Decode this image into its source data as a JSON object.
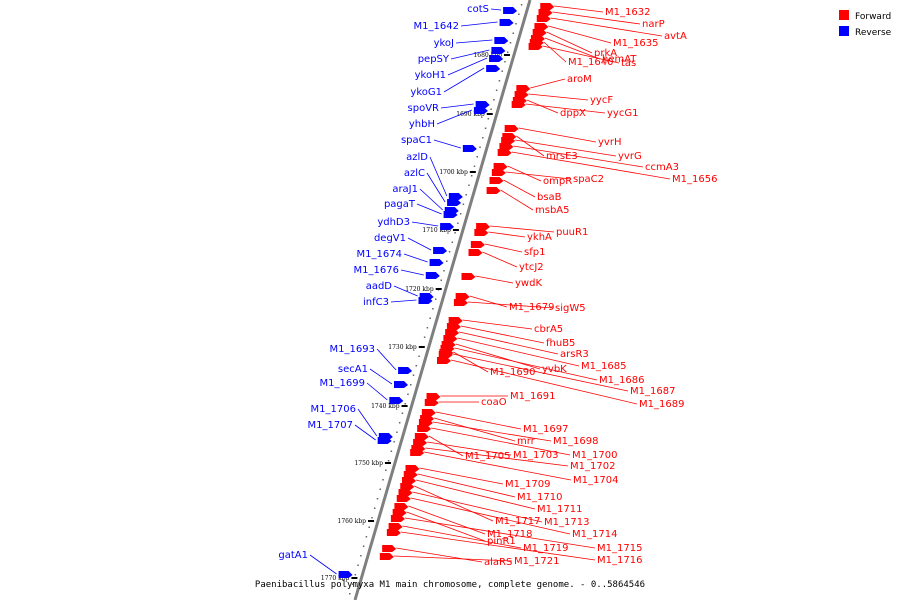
{
  "caption": "Paenibacillus polymyxa M1 main chromosome, complete genome. - 0..5864546",
  "legend": [
    {
      "label": "Forward",
      "color": "#ff0000"
    },
    {
      "label": "Reverse",
      "color": "#0000ff"
    }
  ],
  "colors": {
    "forward": "#ff0000",
    "reverse": "#0000ff",
    "axis": "#7f7f7f",
    "forward_line": "#ff0000",
    "reverse_line": "#0000ff"
  },
  "ticks": [
    "1680 kbp",
    "1690 kbp",
    "1700 kbp",
    "1710 kbp",
    "1720 kbp",
    "1730 kbp",
    "1740 kbp",
    "1750 kbp",
    "1760 kbp",
    "1770 kbp"
  ],
  "reverse_genes": [
    "cotS",
    "M1_1642",
    "ykoJ",
    "pepSY",
    "ykoH1",
    "ykoG1",
    "spoVR",
    "yhbH",
    "spaC1",
    "azlD",
    "azlC",
    "araJ1",
    "pagaT",
    "ydhD3",
    "degV1",
    "M1_1674",
    "M1_1676",
    "aadD",
    "infC3",
    "M1_1693",
    "secA1",
    "M1_1699",
    "M1_1706",
    "M1_1707",
    "gatA1"
  ],
  "forward_genes": [
    "M1_1632",
    "narP",
    "avtA",
    "M1_1635",
    "prkA",
    "hemAT",
    "M1_1640",
    "tas",
    "aroM",
    "yycF",
    "dppX",
    "yycG1",
    "yvrH",
    "mrsE3",
    "yvrG",
    "ccmA3",
    "M1_1656",
    "ompR",
    "spaC2",
    "bsaB",
    "msbA5",
    "puuR1",
    "ykhA",
    "sfp1",
    "ytcJ2",
    "ywdK",
    "M1_1679",
    "sigW5",
    "cbrA5",
    "fhuB5",
    "arsR3",
    "M1_1685",
    "M1_1690",
    "yvbK",
    "M1_1686",
    "M1_1687",
    "M1_1689",
    "coaO",
    "M1_1691",
    "M1_1697",
    "mrr",
    "M1_1698",
    "M1_1700",
    "M1_1705",
    "M1_1703",
    "M1_1702",
    "M1_1704",
    "M1_1709",
    "M1_1710",
    "M1_1711",
    "M1_1717",
    "M1_1713",
    "M1_1714",
    "M1_1718",
    "pinR1",
    "M1_1715",
    "M1_1719",
    "M1_1716",
    "alaRS",
    "M1_1721"
  ]
}
